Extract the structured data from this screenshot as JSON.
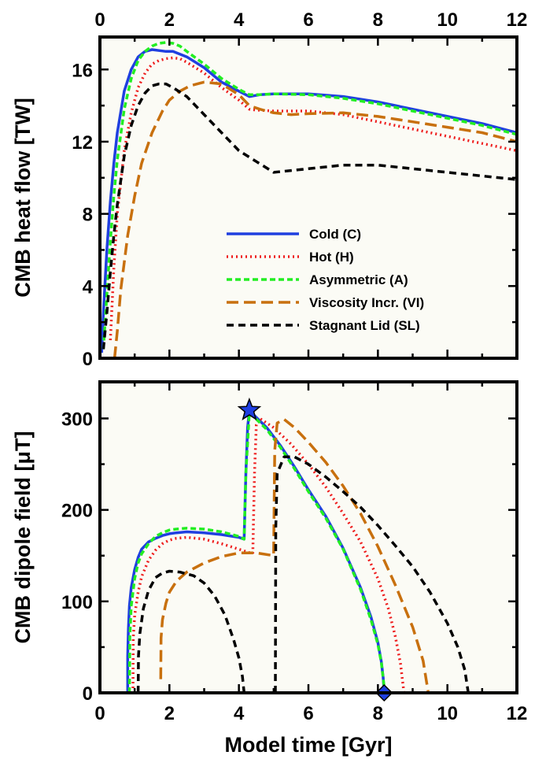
{
  "chart_data": [
    {
      "type": "line",
      "ylabel": "CMB heat flow [TW]",
      "xlim": [
        0,
        12
      ],
      "ylim": [
        0,
        17.8
      ],
      "xticks": [
        0,
        2,
        4,
        6,
        8,
        10,
        12
      ],
      "yticks": [
        0,
        4,
        8,
        12,
        16
      ],
      "legend_position": "center-right",
      "series": [
        {
          "name": "Cold (C)",
          "color": "#1f3fe0",
          "dash": "solid",
          "x": [
            0.05,
            0.1,
            0.2,
            0.3,
            0.4,
            0.5,
            0.7,
            0.9,
            1.1,
            1.3,
            1.5,
            1.7,
            1.9,
            2.1,
            2.5,
            3.0,
            3.5,
            4.0,
            4.3,
            4.6,
            5.0,
            6.0,
            7.0,
            8.0,
            9.0,
            10.0,
            11.0,
            12.0
          ],
          "y": [
            0.3,
            2.5,
            6.0,
            8.7,
            10.8,
            12.5,
            14.8,
            16.0,
            16.7,
            17.0,
            17.1,
            17.05,
            17.0,
            17.0,
            16.7,
            16.1,
            15.3,
            14.8,
            14.5,
            14.6,
            14.65,
            14.65,
            14.5,
            14.2,
            13.8,
            13.4,
            13.0,
            12.5
          ]
        },
        {
          "name": "Hot (H)",
          "color": "#ee1c1c",
          "dash": "2 4",
          "x": [
            0.3,
            0.4,
            0.5,
            0.7,
            0.9,
            1.1,
            1.3,
            1.5,
            1.7,
            1.9,
            2.1,
            2.3,
            2.5,
            3.0,
            3.5,
            4.0,
            4.3,
            4.5,
            5.0,
            6.0,
            7.0,
            8.0,
            9.0,
            10.0,
            11.0,
            12.0
          ],
          "y": [
            1.0,
            5.0,
            8.0,
            11.5,
            13.6,
            15.0,
            15.8,
            16.3,
            16.5,
            16.6,
            16.65,
            16.6,
            16.4,
            15.8,
            15.0,
            14.3,
            13.8,
            13.75,
            13.7,
            13.7,
            13.5,
            13.1,
            12.7,
            12.3,
            11.9,
            11.5
          ]
        },
        {
          "name": "Asymmetric (A)",
          "color": "#22ee22",
          "dash": "7 4",
          "x": [
            0.1,
            0.2,
            0.3,
            0.4,
            0.5,
            0.7,
            0.9,
            1.1,
            1.3,
            1.5,
            1.7,
            1.9,
            2.1,
            2.3,
            2.5,
            3.0,
            3.5,
            4.0,
            4.3,
            4.6,
            5.0,
            6.0,
            7.0,
            8.0,
            9.0,
            10.0,
            11.0,
            12.0
          ],
          "y": [
            0.5,
            3.5,
            6.5,
            9.0,
            11.0,
            13.8,
            15.5,
            16.5,
            17.0,
            17.3,
            17.45,
            17.5,
            17.45,
            17.3,
            17.0,
            16.3,
            15.5,
            14.9,
            14.6,
            14.6,
            14.65,
            14.6,
            14.4,
            14.1,
            13.7,
            13.3,
            12.9,
            12.4
          ]
        },
        {
          "name": "Viscosity Incr. (VI)",
          "color": "#c8700e",
          "dash": "15 7",
          "x": [
            0.42,
            0.5,
            0.6,
            0.8,
            1.0,
            1.2,
            1.5,
            1.8,
            2.0,
            2.3,
            2.6,
            3.0,
            3.5,
            4.0,
            4.3,
            4.6,
            5.0,
            5.5,
            6.0,
            7.0,
            8.0,
            9.0,
            10.0,
            11.0,
            12.0
          ],
          "y": [
            0.0,
            1.5,
            3.8,
            6.8,
            9.0,
            10.8,
            12.5,
            13.7,
            14.3,
            14.8,
            15.1,
            15.3,
            15.2,
            14.6,
            14.0,
            13.8,
            13.6,
            13.5,
            13.55,
            13.6,
            13.4,
            13.1,
            12.8,
            12.5,
            12.0
          ]
        },
        {
          "name": "Stagnant Lid (SL)",
          "color": "#000000",
          "dash": "9 6",
          "x": [
            0.1,
            0.2,
            0.3,
            0.4,
            0.5,
            0.7,
            0.9,
            1.1,
            1.3,
            1.5,
            1.7,
            1.9,
            2.1,
            2.5,
            3.0,
            3.5,
            4.0,
            4.5,
            5.0,
            5.5,
            6.0,
            7.0,
            8.0,
            9.0,
            10.0,
            11.0,
            12.0
          ],
          "y": [
            0.5,
            2.5,
            4.8,
            6.8,
            8.5,
            11.2,
            12.9,
            14.0,
            14.7,
            15.1,
            15.2,
            15.2,
            15.0,
            14.5,
            13.5,
            12.5,
            11.5,
            10.9,
            10.3,
            10.4,
            10.5,
            10.7,
            10.7,
            10.5,
            10.3,
            10.1,
            9.9
          ]
        }
      ]
    },
    {
      "type": "line",
      "xlabel": "Model time [Gyr]",
      "ylabel": "CMB dipole field [μT]",
      "xlim": [
        0,
        12
      ],
      "ylim": [
        0,
        340
      ],
      "xticks": [
        0,
        2,
        4,
        6,
        8,
        10,
        12
      ],
      "yticks": [
        0,
        100,
        200,
        300
      ],
      "series": [
        {
          "name": "Cold (C)",
          "color": "#1f3fe0",
          "dash": "solid",
          "segments": [
            {
              "x": [
                0.8,
                0.8,
                0.82,
                0.85,
                0.9,
                1.0,
                1.1,
                1.2,
                1.4,
                1.6,
                1.8,
                2.0,
                2.2,
                2.5,
                3.0,
                3.5,
                4.0,
                4.15,
                4.2,
                4.25,
                4.3,
                4.4,
                4.8,
                5.2,
                5.6,
                6.0,
                6.5,
                7.0,
                7.5,
                7.8,
                8.0,
                8.1,
                8.15,
                8.18
              ],
              "y": [
                0,
                40,
                70,
                95,
                115,
                135,
                148,
                157,
                165,
                169,
                172,
                174,
                175,
                176,
                175,
                173,
                170,
                168,
                240,
                290,
                308,
                305,
                290,
                270,
                247,
                222,
                193,
                158,
                115,
                83,
                55,
                34,
                17,
                0
              ]
            }
          ]
        },
        {
          "name": "Hot (H)",
          "color": "#ee1c1c",
          "dash": "2 4",
          "segments": [
            {
              "x": [
                0.95,
                0.96,
                1.0,
                1.1,
                1.2,
                1.4,
                1.6,
                1.8,
                2.0,
                2.2,
                2.5,
                3.0,
                3.5,
                4.0,
                4.4,
                4.45,
                4.5,
                4.6,
                5.0,
                5.5,
                6.0,
                6.5,
                7.0,
                7.5,
                8.0,
                8.3,
                8.5,
                8.65,
                8.75
              ],
              "y": [
                0,
                60,
                85,
                110,
                127,
                145,
                156,
                163,
                167,
                169,
                170,
                168,
                163,
                157,
                152,
                240,
                293,
                300,
                290,
                272,
                250,
                225,
                196,
                165,
                125,
                92,
                62,
                32,
                0
              ]
            }
          ]
        },
        {
          "name": "Asymmetric (A)",
          "color": "#22ee22",
          "dash": "7 4",
          "segments": [
            {
              "x": [
                0.85,
                0.86,
                0.9,
                1.0,
                1.1,
                1.2,
                1.4,
                1.6,
                1.8,
                2.0,
                2.2,
                2.5,
                3.0,
                3.5,
                4.0,
                4.15,
                4.2,
                4.3,
                4.4,
                4.8,
                5.2,
                5.6,
                6.0,
                6.5,
                7.0,
                7.5,
                7.8,
                8.0,
                8.1,
                8.15,
                8.2
              ],
              "y": [
                0,
                60,
                95,
                125,
                142,
                152,
                163,
                171,
                175,
                178,
                179,
                180,
                179,
                176,
                171,
                168,
                240,
                306,
                303,
                288,
                268,
                245,
                220,
                191,
                157,
                113,
                80,
                53,
                33,
                16,
                0
              ]
            }
          ]
        },
        {
          "name": "Viscosity Incr. (VI)",
          "color": "#c8700e",
          "dash": "15 7",
          "segments": [
            {
              "x": [
                1.75,
                1.76,
                1.8,
                1.9,
                2.0,
                2.2,
                2.5,
                3.0,
                3.5,
                4.0,
                4.5,
                5.0,
                5.03,
                5.1,
                5.3,
                5.6,
                6.0,
                6.5,
                7.0,
                7.5,
                8.0,
                8.5,
                9.0,
                9.3,
                9.45
              ],
              "y": [
                15,
                60,
                80,
                98,
                110,
                122,
                132,
                142,
                149,
                153,
                153,
                150,
                265,
                295,
                299,
                290,
                274,
                252,
                226,
                196,
                160,
                118,
                72,
                35,
                0
              ]
            }
          ]
        },
        {
          "name": "Stagnant Lid (SL)",
          "color": "#000000",
          "dash": "9 6",
          "segments": [
            {
              "x": [
                1.1,
                1.11,
                1.15,
                1.25,
                1.4,
                1.6,
                1.8,
                2.0,
                2.3,
                2.7,
                3.0,
                3.3,
                3.6,
                3.85,
                4.0,
                4.1,
                4.15
              ],
              "y": [
                0,
                40,
                65,
                92,
                112,
                126,
                131,
                133,
                132,
                128,
                120,
                106,
                85,
                58,
                38,
                18,
                0
              ]
            },
            {
              "x": [
                5.05,
                5.06,
                5.1,
                5.3,
                5.6,
                6.0,
                6.5,
                7.0,
                7.5,
                8.0,
                8.5,
                9.0,
                9.5,
                10.0,
                10.3,
                10.5,
                10.6
              ],
              "y": [
                0,
                180,
                240,
                258,
                258,
                250,
                236,
                220,
                203,
                183,
                161,
                138,
                110,
                76,
                50,
                25,
                0
              ]
            }
          ]
        }
      ],
      "markers": [
        {
          "shape": "star",
          "x": 4.3,
          "y": 309,
          "color": "#1f3fe0"
        },
        {
          "shape": "diamond",
          "x": 8.18,
          "y": 0,
          "color": "#1f3fe0"
        }
      ]
    }
  ]
}
